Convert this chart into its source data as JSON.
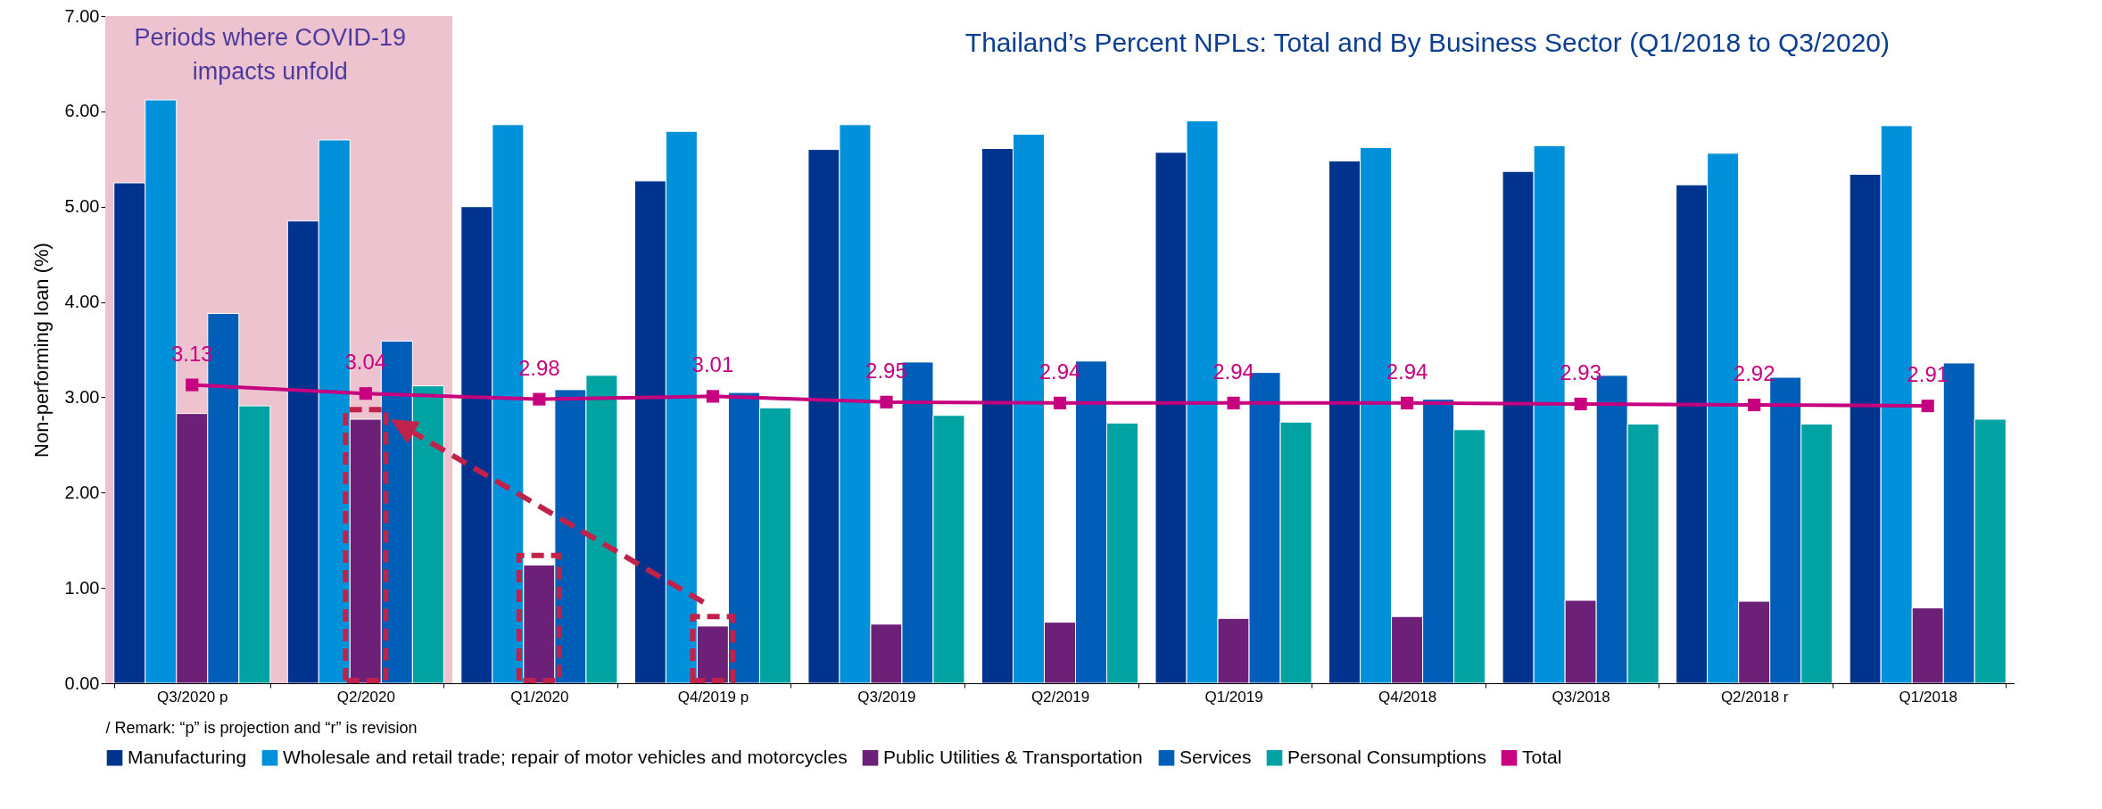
{
  "chart_data": {
    "type": "bar",
    "title": "Thailand’s Percent NPLs: Total and By Business Sector (Q1/2018 to Q3/2020)",
    "ylabel": "Non-performing loan (%)",
    "categories": [
      "Q3/2020 p",
      "Q2/2020",
      "Q1/2020",
      "Q4/2019 p",
      "Q3/2019",
      "Q2/2019",
      "Q1/2019",
      "Q4/2018",
      "Q3/2018",
      "Q2/2018 r",
      "Q1/2018"
    ],
    "series": [
      {
        "name": "Manufacturing",
        "color": "#00338d",
        "values": [
          5.25,
          4.85,
          5.0,
          5.27,
          5.6,
          5.61,
          5.57,
          5.48,
          5.37,
          5.23,
          5.34
        ]
      },
      {
        "name": "Wholesale and retail trade; repair of motor vehicles and motorcycles",
        "color": "#0091da",
        "values": [
          6.12,
          5.7,
          5.86,
          5.79,
          5.86,
          5.76,
          5.9,
          5.62,
          5.64,
          5.56,
          5.85
        ]
      },
      {
        "name": "Public Utilities & Transportation",
        "color": "#6d2077",
        "values": [
          2.83,
          2.77,
          1.24,
          0.6,
          0.62,
          0.64,
          0.68,
          0.7,
          0.87,
          0.86,
          0.79
        ]
      },
      {
        "name": "Services",
        "color": "#005eb8",
        "values": [
          3.88,
          3.59,
          3.08,
          3.05,
          3.37,
          3.38,
          3.26,
          2.98,
          3.23,
          3.21,
          3.36
        ]
      },
      {
        "name": "Personal Consumptions",
        "color": "#00a3a1",
        "values": [
          2.91,
          3.12,
          3.23,
          2.89,
          2.81,
          2.73,
          2.74,
          2.66,
          2.72,
          2.72,
          2.77
        ]
      },
      {
        "name": "Total",
        "type": "line",
        "color": "#c6007e",
        "values": [
          3.13,
          3.04,
          2.98,
          3.01,
          2.95,
          2.94,
          2.94,
          2.94,
          2.93,
          2.92,
          2.91
        ],
        "value_labels": [
          "3.13",
          "3.04",
          "2.98",
          "3.01",
          "2.95",
          "2.94",
          "2.94",
          "2.94",
          "2.93",
          "2.92",
          "2.91"
        ]
      }
    ],
    "ylim": [
      0,
      7
    ],
    "yticks": [
      {
        "value": 0,
        "label": "0.00"
      },
      {
        "value": 1,
        "label": "1.00"
      },
      {
        "value": 2,
        "label": "2.00"
      },
      {
        "value": 3,
        "label": "3.00"
      },
      {
        "value": 4,
        "label": "4.00"
      },
      {
        "value": 5,
        "label": "5.00"
      },
      {
        "value": 6,
        "label": "6.00"
      },
      {
        "value": 7,
        "label": "7.00"
      }
    ],
    "bands": [
      {
        "axis": "x",
        "from": "Q3/2020 p",
        "to": "Q2/2020",
        "label": "Periods where COVID-19 impacts unfold",
        "color": "#ecc3cf"
      }
    ],
    "annotations": [
      "/ Remark: “p” is projection and “r” is revision"
    ],
    "grid": false,
    "legend": "bottom",
    "marker": "square"
  }
}
